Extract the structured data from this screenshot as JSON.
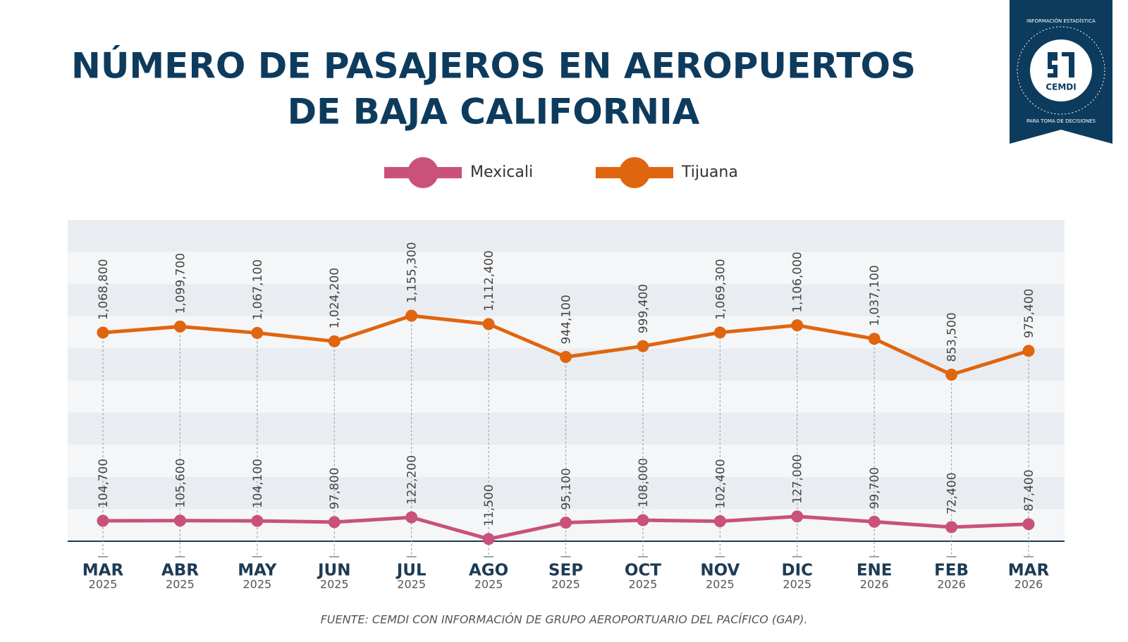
{
  "chart_data": {
    "type": "line",
    "title": [
      "NÚMERO DE PASAJEROS EN AEROPUERTOS",
      "DE BAJA CALIFORNIA"
    ],
    "categories": [
      [
        "MAR",
        "2025"
      ],
      [
        "ABR",
        "2025"
      ],
      [
        "MAY",
        "2025"
      ],
      [
        "JUN",
        "2025"
      ],
      [
        "JUL",
        "2025"
      ],
      [
        "AGO",
        "2025"
      ],
      [
        "SEP",
        "2025"
      ],
      [
        "OCT",
        "2025"
      ],
      [
        "NOV",
        "2025"
      ],
      [
        "DIC",
        "2025"
      ],
      [
        "ENE",
        "2026"
      ],
      [
        "FEB",
        "2026"
      ],
      [
        "MAR",
        "2026"
      ]
    ],
    "series": [
      {
        "name": "Mexicali",
        "color": "#c9517a",
        "values": [
          104700,
          105600,
          104100,
          97800,
          122200,
          11500,
          95100,
          108000,
          102400,
          127000,
          99700,
          72400,
          87400
        ],
        "value_labels": [
          "104,700",
          "105,600",
          "104,100",
          "97,800",
          "122,200",
          "11,500",
          "95,100",
          "108,000",
          "102,400",
          "127,000",
          "99,700",
          "72,400",
          "87,400"
        ]
      },
      {
        "name": "Tijuana",
        "color": "#e0650f",
        "values": [
          1068800,
          1099700,
          1067100,
          1024200,
          1155300,
          1112400,
          944100,
          999400,
          1069300,
          1106000,
          1037100,
          853500,
          975400
        ],
        "value_labels": [
          "1,068,800",
          "1,099,700",
          "1,067,100",
          "1,024,200",
          "1,155,300",
          "1,112,400",
          "944,100",
          "999,400",
          "1,069,300",
          "1,106,000",
          "1,037,100",
          "853,500",
          "975,400"
        ]
      }
    ],
    "source": "FUENTE: CEMDI CON INFORMACIÓN DE GRUPO AEROPORTUARIO DEL PACÍFICO (GAP).",
    "logo": {
      "name": "CEMDI",
      "top_text": "INFORMACIÓN ESTADÍSTICA",
      "bottom_text": "PARA TOMA DE DECISIONES"
    }
  }
}
